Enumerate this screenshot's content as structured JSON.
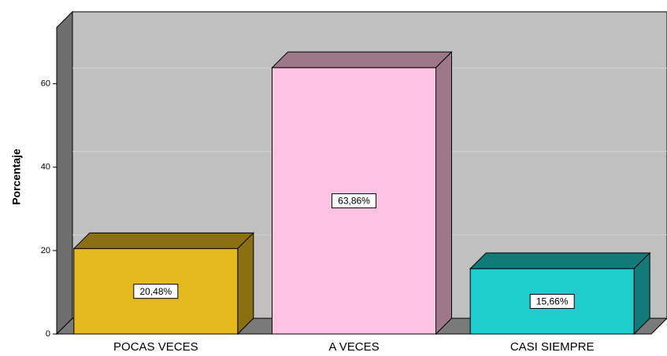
{
  "chart_data": {
    "type": "bar3d",
    "y_label": "Porcentaje",
    "categories": [
      "POCAS VECES",
      "A VECES",
      "CASI SIEMPRE"
    ],
    "values": [
      20.48,
      63.86,
      15.66
    ],
    "value_labels": [
      "20,48%",
      "63,86%",
      "15,66%"
    ],
    "colors": [
      "#e4b91e",
      "#ffc2e2",
      "#1fcdcd"
    ],
    "shade_colors": [
      "#8a7010",
      "#9e7888",
      "#137a7a"
    ],
    "ylim": [
      0,
      73.5
    ],
    "yticks": [
      0,
      20,
      40,
      60
    ],
    "grid": true
  }
}
